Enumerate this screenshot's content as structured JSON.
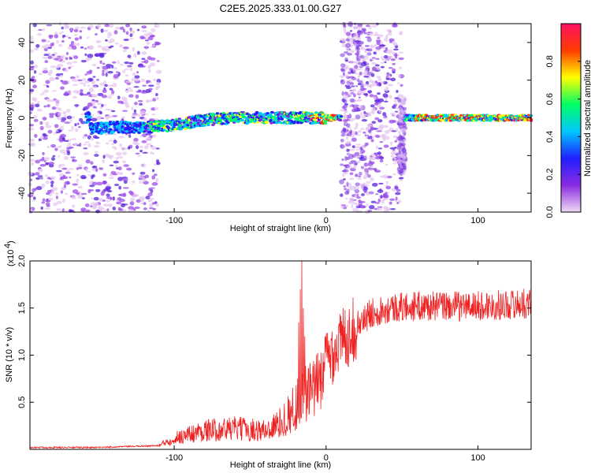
{
  "title": "C2E5.2025.333.01.00.G27",
  "chart_data": [
    {
      "type": "heatmap",
      "xlabel": "Height of straight line (km)",
      "ylabel": "Frequency (Hz)",
      "xlim": [
        -195,
        135
      ],
      "ylim": [
        -50,
        50
      ],
      "xticks": [
        {
          "v": -100,
          "t": "-100"
        },
        {
          "v": 0,
          "t": "0"
        },
        {
          "v": 100,
          "t": "100"
        }
      ],
      "yticks": [
        {
          "v": 40,
          "t": "40"
        },
        {
          "v": 20,
          "t": "20"
        },
        {
          "v": 0,
          "t": "0"
        },
        {
          "v": -20,
          "t": "-20"
        },
        {
          "v": -40,
          "t": "-40"
        }
      ],
      "colorbar": {
        "label": "Normalized spectral amplitude",
        "range": [
          0,
          1
        ],
        "ticks": [
          {
            "v": 0.0,
            "t": "0.0"
          },
          {
            "v": 0.2,
            "t": "0.2"
          },
          {
            "v": 0.4,
            "t": "0.4"
          },
          {
            "v": 0.6,
            "t": "0.6"
          },
          {
            "v": 0.8,
            "t": "0.8"
          }
        ],
        "colors": [
          "#f0d8f4",
          "#8a2be2",
          "#2020ff",
          "#00c8ff",
          "#00ff64",
          "#ffff00",
          "#ff3c00",
          "#ff1060"
        ]
      },
      "ridge": [
        [
          -155,
          -6
        ],
        [
          -140,
          -5
        ],
        [
          -120,
          -5
        ],
        [
          -100,
          -4
        ],
        [
          -80,
          -1
        ],
        [
          -60,
          0
        ],
        [
          -40,
          0
        ],
        [
          -20,
          0
        ],
        [
          -5,
          0
        ],
        [
          5,
          0
        ],
        [
          12,
          0
        ],
        [
          55,
          0
        ],
        [
          70,
          0
        ],
        [
          90,
          0
        ],
        [
          110,
          0
        ],
        [
          135,
          0
        ]
      ],
      "noise_regions": [
        [
          -195,
          -110
        ],
        [
          10,
          50
        ]
      ],
      "vertical_bands": [
        [
          10,
          30,
          -50,
          50
        ],
        [
          48,
          52,
          -30,
          10
        ]
      ]
    },
    {
      "type": "line",
      "xlabel": "Height of straight line (km)",
      "ylabel": "SNR (10 * v/v)",
      "y_multiplier": "(x10",
      "y_exponent": "4",
      "xlim": [
        -195,
        135
      ],
      "ylim": [
        0,
        2.0
      ],
      "xticks": [
        {
          "v": -100,
          "t": "-100"
        },
        {
          "v": 0,
          "t": "0"
        },
        {
          "v": 100,
          "t": "100"
        }
      ],
      "yticks": [
        {
          "v": 2.0,
          "t": "2.0"
        },
        {
          "v": 1.5,
          "t": "1.5"
        },
        {
          "v": 1.0,
          "t": "1.0"
        },
        {
          "v": 0.5,
          "t": "0.5"
        }
      ],
      "color": "#ee2222",
      "series_env": [
        [
          -195,
          0.02
        ],
        [
          -150,
          0.02
        ],
        [
          -110,
          0.04
        ],
        [
          -100,
          0.12
        ],
        [
          -80,
          0.2
        ],
        [
          -60,
          0.22
        ],
        [
          -40,
          0.2
        ],
        [
          -30,
          0.28
        ],
        [
          -20,
          0.45
        ],
        [
          -15,
          0.65
        ],
        [
          -12,
          0.55
        ],
        [
          -5,
          0.7
        ],
        [
          0,
          0.95
        ],
        [
          10,
          1.15
        ],
        [
          20,
          1.3
        ],
        [
          30,
          1.45
        ],
        [
          40,
          1.5
        ],
        [
          60,
          1.52
        ],
        [
          80,
          1.52
        ],
        [
          100,
          1.52
        ],
        [
          135,
          1.55
        ]
      ],
      "spikes": [
        [
          -17,
          1.7
        ],
        [
          -16,
          2.0
        ],
        [
          -15,
          1.5
        ],
        [
          -14,
          1.2
        ],
        [
          -18,
          1.35
        ]
      ]
    }
  ]
}
